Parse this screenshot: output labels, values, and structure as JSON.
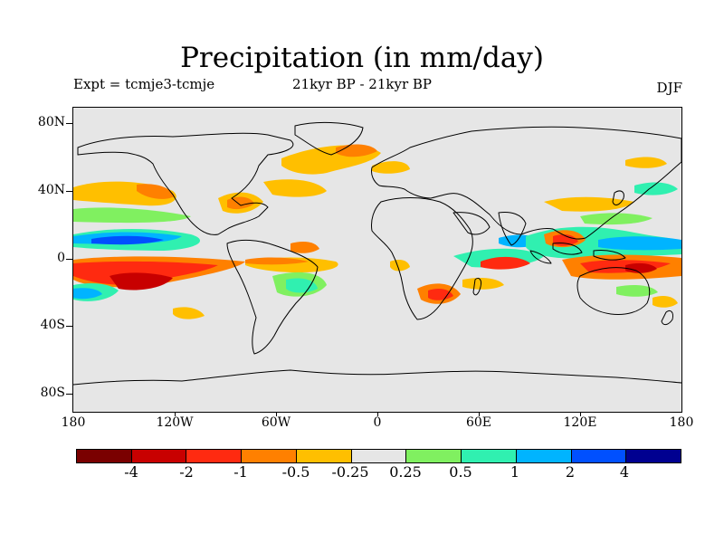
{
  "title": "Precipitation (in mm/day)",
  "experiment_label": "Expt = tcmje3-tcmje",
  "period_label": "21kyr BP - 21kyr BP",
  "season_label": "DJF",
  "lat_labels": [
    "80N",
    "40N",
    "0",
    "40S",
    "80S"
  ],
  "lon_labels": [
    "180",
    "120W",
    "60W",
    "0",
    "60E",
    "120E",
    "180"
  ],
  "colorbar": {
    "colors": [
      "#7a0000",
      "#c80000",
      "#ff2a10",
      "#ff8000",
      "#ffbf00",
      "#e6e6e6",
      "#80f060",
      "#30f0b0",
      "#00b4ff",
      "#0050ff",
      "#000090"
    ],
    "labels": [
      "-4",
      "-2",
      "-1",
      "-0.5",
      "-0.25",
      "0.25",
      "0.5",
      "1",
      "2",
      "4"
    ]
  },
  "map": {
    "background_color": "#e6e6e6",
    "coastline_color": "#000000"
  }
}
